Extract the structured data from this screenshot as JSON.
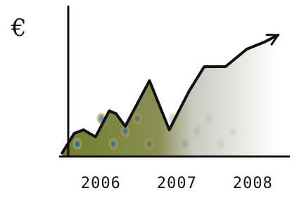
{
  "chart_data": {
    "type": "area",
    "y_label": "€",
    "x": [
      2005.49,
      2005.65,
      2005.77,
      2005.93,
      2006.11,
      2006.2,
      2006.32,
      2006.64,
      2006.9,
      2007.16,
      2007.36,
      2007.64,
      2007.92,
      2008.15,
      2008.33
    ],
    "values": [
      2,
      16,
      18.5,
      13.5,
      32,
      30,
      21,
      53.5,
      18.5,
      46,
      63.5,
      63.5,
      76,
      81,
      86
    ],
    "xlim": [
      2005.45,
      2008.45
    ],
    "xticks": [
      2006,
      2007,
      2008
    ],
    "ylim": [
      0,
      100
    ],
    "color": "#111111",
    "fill_color": "#7a8a3a"
  }
}
